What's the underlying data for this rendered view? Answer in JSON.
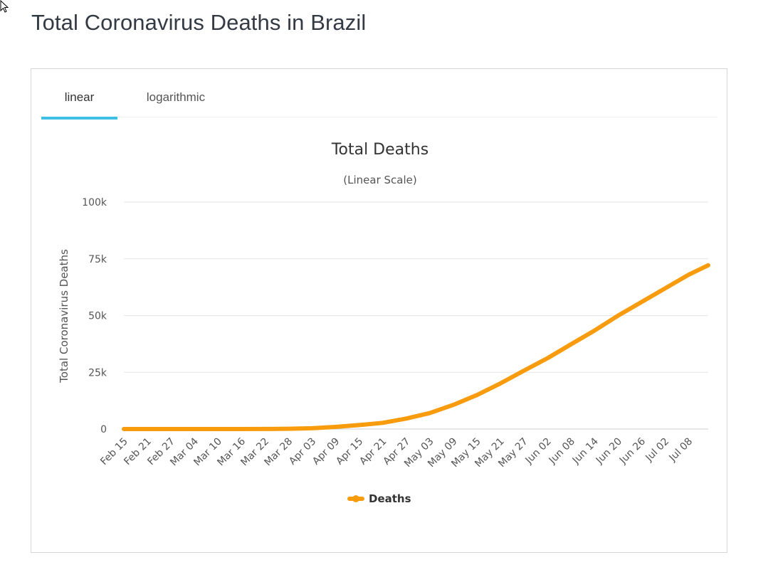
{
  "page_title": "Total Coronavirus Deaths in Brazil",
  "tabs": [
    {
      "label": "linear",
      "active": true
    },
    {
      "label": "logarithmic",
      "active": false
    }
  ],
  "colors": {
    "accent": "#3fbfe3",
    "series": "#f89c0e",
    "grid": "#e6e6e6"
  },
  "chart_data": {
    "type": "line",
    "title": "Total Deaths",
    "subtitle": "(Linear Scale)",
    "ylabel": "Total Coronavirus Deaths",
    "xlabel": "",
    "ylim": [
      0,
      100000
    ],
    "y_ticks": [
      0,
      25000,
      50000,
      75000,
      100000
    ],
    "y_tick_labels": [
      "0",
      "25k",
      "50k",
      "75k",
      "100k"
    ],
    "x_tick_labels": [
      "Feb 15",
      "Feb 21",
      "Feb 27",
      "Mar 04",
      "Mar 10",
      "Mar 16",
      "Mar 22",
      "Mar 28",
      "Apr 03",
      "Apr 09",
      "Apr 15",
      "Apr 21",
      "Apr 27",
      "May 03",
      "May 09",
      "May 15",
      "May 21",
      "May 27",
      "Jun 02",
      "Jun 08",
      "Jun 14",
      "Jun 20",
      "Jun 26",
      "Jul 02",
      "Jul 08"
    ],
    "x_start": "Feb 15",
    "x_end": "Jul 13",
    "grid": true,
    "legend": "bottom-center",
    "series": [
      {
        "name": "Deaths",
        "x": [
          "Feb 15",
          "Mar 16",
          "Mar 22",
          "Mar 28",
          "Apr 03",
          "Apr 09",
          "Apr 15",
          "Apr 21",
          "Apr 27",
          "May 03",
          "May 09",
          "May 15",
          "May 21",
          "May 27",
          "Jun 02",
          "Jun 08",
          "Jun 14",
          "Jun 20",
          "Jun 26",
          "Jul 02",
          "Jul 08",
          "Jul 13"
        ],
        "values": [
          0,
          0,
          25,
          111,
          359,
          941,
          1760,
          2741,
          4603,
          7025,
          10627,
          14962,
          20082,
          25697,
          31199,
          37312,
          43389,
          49976,
          55961,
          61990,
          67964,
          72151
        ]
      }
    ]
  }
}
